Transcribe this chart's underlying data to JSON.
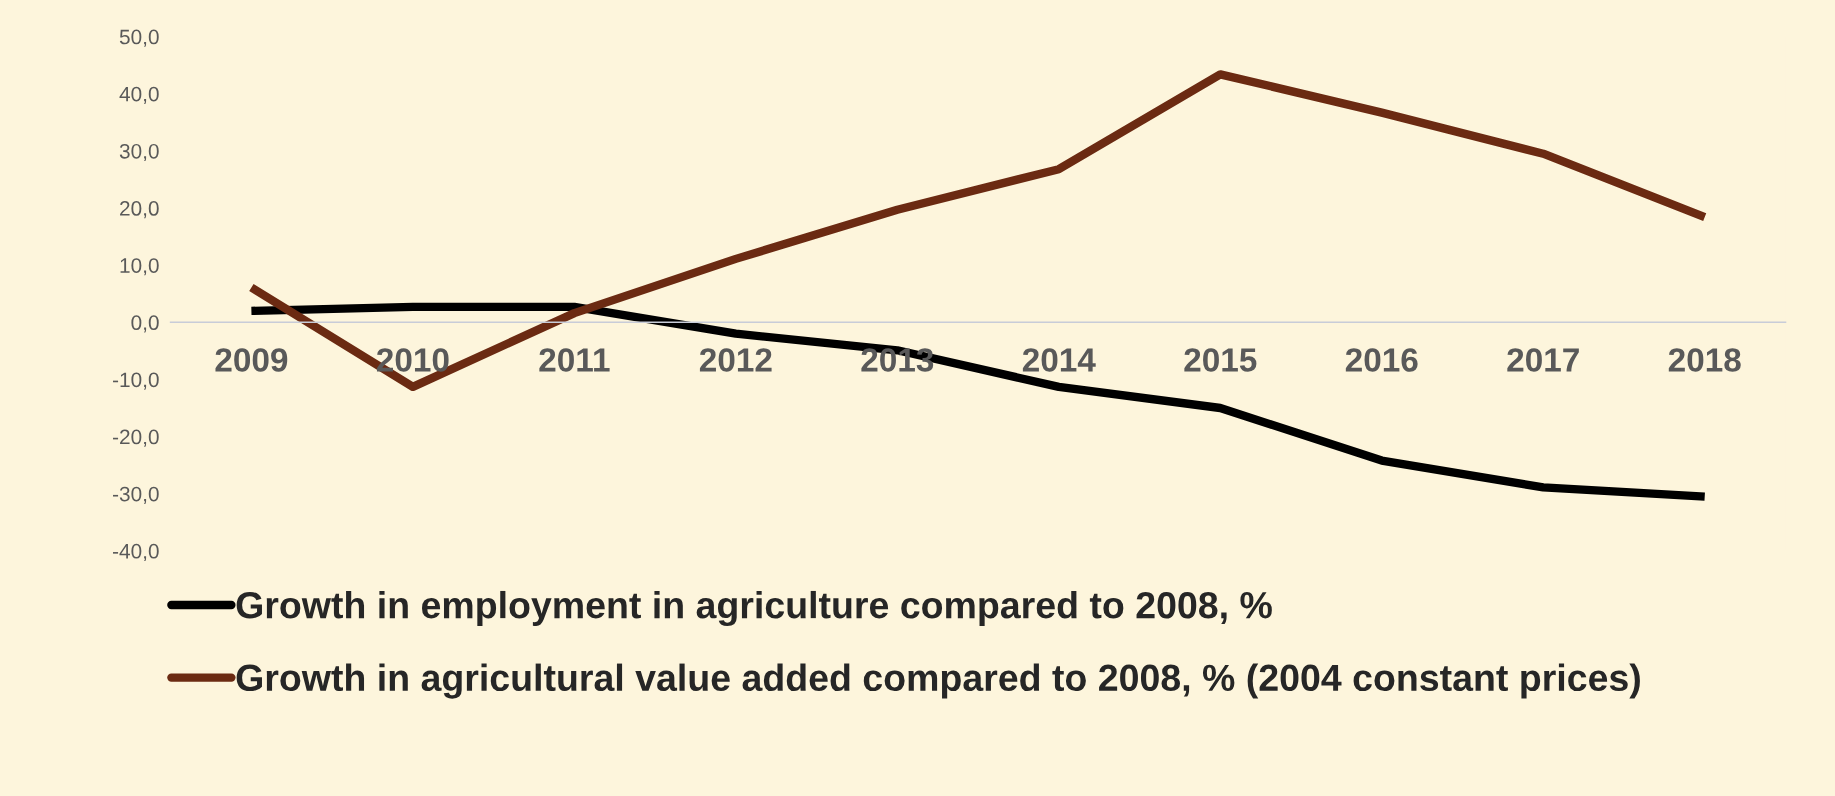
{
  "chart_data": {
    "type": "line",
    "categories": [
      "2009",
      "2010",
      "2011",
      "2012",
      "2013",
      "2014",
      "2015",
      "2016",
      "2017",
      "2018"
    ],
    "series": [
      {
        "name": "Growth in employment in agriculture compared to 2008, %",
        "color": "#000000",
        "values": [
          2.0,
          2.7,
          2.7,
          -2.0,
          -4.9,
          -11.3,
          -15.0,
          -24.2,
          -28.9,
          -30.5
        ]
      },
      {
        "name": "Growth in agricultural value added compared to 2008, % (2004 constant prices)",
        "color": "#6b2a12",
        "values": [
          6.1,
          -11.3,
          1.6,
          11.1,
          19.7,
          26.8,
          43.4,
          36.7,
          29.5,
          18.4
        ]
      }
    ],
    "ylim": [
      -40,
      50
    ],
    "yticks": [
      {
        "value": -40,
        "label": "-40,0"
      },
      {
        "value": -30,
        "label": "-30,0"
      },
      {
        "value": -20,
        "label": "-20,0"
      },
      {
        "value": -10,
        "label": "-10,0"
      },
      {
        "value": 0,
        "label": "0,0"
      },
      {
        "value": 10,
        "label": "10,0"
      },
      {
        "value": 20,
        "label": "20,0"
      },
      {
        "value": 30,
        "label": "30,0"
      },
      {
        "value": 40,
        "label": "40,0"
      },
      {
        "value": 50,
        "label": "50,0"
      }
    ],
    "grid": false,
    "legend": "bottom",
    "marker": "none",
    "line_style": "solid"
  }
}
